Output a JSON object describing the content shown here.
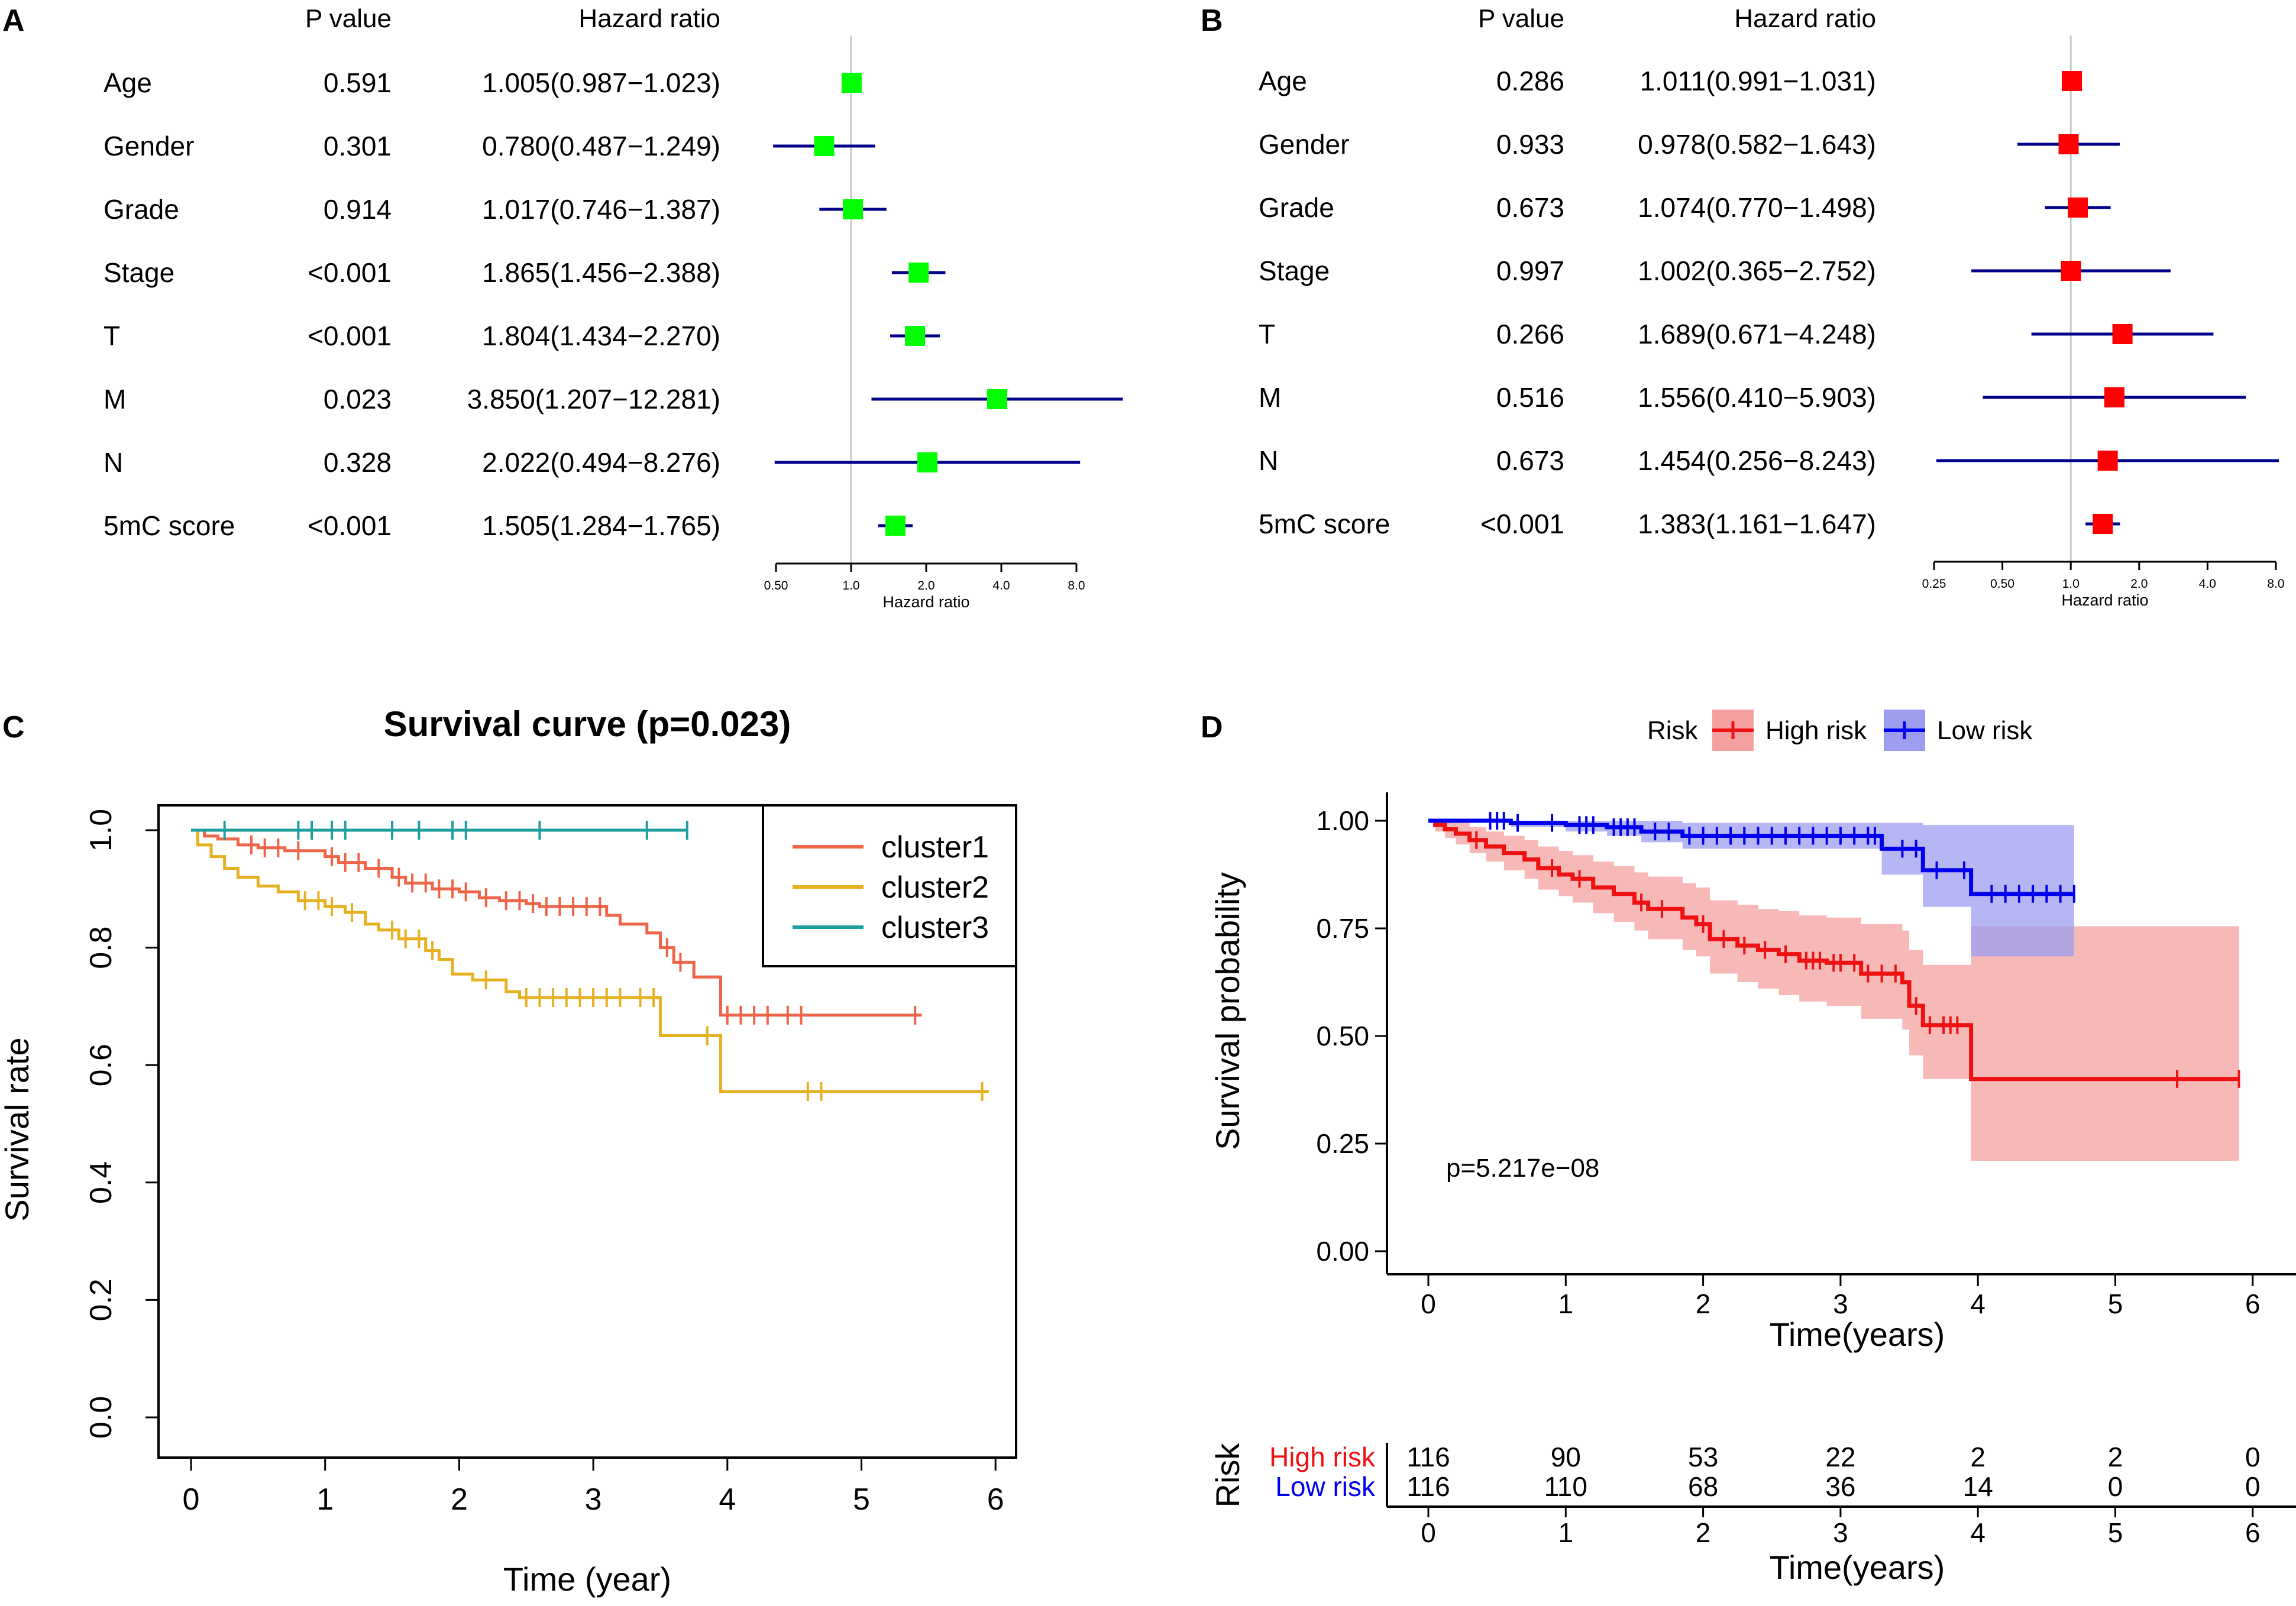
{
  "panels": {
    "a": {
      "letter": "A"
    },
    "b": {
      "letter": "B"
    },
    "c": {
      "letter": "C"
    },
    "d": {
      "letter": "D"
    }
  },
  "chart_data": [
    {
      "id": "A",
      "type": "forest",
      "col_pvalue": "P value",
      "col_hr": "Hazard ratio",
      "xlabel": "Hazard ratio",
      "x_scale": "log2",
      "x_ticks": [
        0.5,
        1.0,
        2.0,
        4.0,
        8.0
      ],
      "x_tick_labels": [
        "0.50",
        "1.0",
        "2.0",
        "4.0",
        "8.0"
      ],
      "xlim": [
        0.5,
        8.0
      ],
      "reference_line": 1.0,
      "marker_color": "#00ff00",
      "ci_color": "#00008b",
      "rows": [
        {
          "name": "Age",
          "p": "0.591",
          "hr_text": "1.005(0.987−1.023)",
          "hr": 1.005,
          "lo": 0.987,
          "hi": 1.023
        },
        {
          "name": "Gender",
          "p": "0.301",
          "hr_text": "0.780(0.487−1.249)",
          "hr": 0.78,
          "lo": 0.487,
          "hi": 1.249
        },
        {
          "name": "Grade",
          "p": "0.914",
          "hr_text": "1.017(0.746−1.387)",
          "hr": 1.017,
          "lo": 0.746,
          "hi": 1.387
        },
        {
          "name": "Stage",
          "p": "<0.001",
          "hr_text": "1.865(1.456−2.388)",
          "hr": 1.865,
          "lo": 1.456,
          "hi": 2.388
        },
        {
          "name": "T",
          "p": "<0.001",
          "hr_text": "1.804(1.434−2.270)",
          "hr": 1.804,
          "lo": 1.434,
          "hi": 2.27
        },
        {
          "name": "M",
          "p": "0.023",
          "hr_text": "3.850(1.207−12.281)",
          "hr": 3.85,
          "lo": 1.207,
          "hi": 12.281
        },
        {
          "name": "N",
          "p": "0.328",
          "hr_text": "2.022(0.494−8.276)",
          "hr": 2.022,
          "lo": 0.494,
          "hi": 8.276
        },
        {
          "name": "5mC score",
          "p": "<0.001",
          "hr_text": "1.505(1.284−1.765)",
          "hr": 1.505,
          "lo": 1.284,
          "hi": 1.765
        }
      ]
    },
    {
      "id": "B",
      "type": "forest",
      "col_pvalue": "P value",
      "col_hr": "Hazard ratio",
      "xlabel": "Hazard ratio",
      "x_scale": "log2",
      "x_ticks": [
        0.25,
        0.5,
        1.0,
        2.0,
        4.0,
        8.0
      ],
      "x_tick_labels": [
        "0.25",
        "0.50",
        "1.0",
        "2.0",
        "4.0",
        "8.0"
      ],
      "xlim": [
        0.25,
        8.0
      ],
      "reference_line": 1.0,
      "marker_color": "#ff0000",
      "ci_color": "#00008b",
      "rows": [
        {
          "name": "Age",
          "p": "0.286",
          "hr_text": "1.011(0.991−1.031)",
          "hr": 1.011,
          "lo": 0.991,
          "hi": 1.031
        },
        {
          "name": "Gender",
          "p": "0.933",
          "hr_text": "0.978(0.582−1.643)",
          "hr": 0.978,
          "lo": 0.582,
          "hi": 1.643
        },
        {
          "name": "Grade",
          "p": "0.673",
          "hr_text": "1.074(0.770−1.498)",
          "hr": 1.074,
          "lo": 0.77,
          "hi": 1.498
        },
        {
          "name": "Stage",
          "p": "0.997",
          "hr_text": "1.002(0.365−2.752)",
          "hr": 1.002,
          "lo": 0.365,
          "hi": 2.752
        },
        {
          "name": "T",
          "p": "0.266",
          "hr_text": "1.689(0.671−4.248)",
          "hr": 1.689,
          "lo": 0.671,
          "hi": 4.248
        },
        {
          "name": "M",
          "p": "0.516",
          "hr_text": "1.556(0.410−5.903)",
          "hr": 1.556,
          "lo": 0.41,
          "hi": 5.903
        },
        {
          "name": "N",
          "p": "0.673",
          "hr_text": "1.454(0.256−8.243)",
          "hr": 1.454,
          "lo": 0.256,
          "hi": 8.243
        },
        {
          "name": "5mC score",
          "p": "<0.001",
          "hr_text": "1.383(1.161−1.647)",
          "hr": 1.383,
          "lo": 1.161,
          "hi": 1.647
        }
      ]
    },
    {
      "id": "C",
      "type": "line",
      "subtype": "kaplan-meier",
      "title": "Survival curve (p=0.023)",
      "xlabel": "Time (year)",
      "ylabel": "Survival rate",
      "xlim": [
        0,
        6
      ],
      "ylim": [
        0,
        1
      ],
      "x_ticks": [
        0,
        1,
        2,
        3,
        4,
        5,
        6
      ],
      "x_tick_labels": [
        "0",
        "1",
        "2",
        "3",
        "4",
        "5",
        "6"
      ],
      "y_ticks": [
        0,
        0.2,
        0.4,
        0.6,
        0.8,
        1.0
      ],
      "y_tick_labels": [
        "0.0",
        "0.2",
        "0.4",
        "0.6",
        "0.8",
        "1.0"
      ],
      "legend_position": "top-right",
      "series": [
        {
          "name": "cluster1",
          "color": "#ef6548",
          "x": [
            0,
            0.1,
            0.2,
            0.35,
            0.5,
            0.7,
            1.0,
            1.1,
            1.3,
            1.5,
            1.6,
            1.8,
            2.0,
            2.15,
            2.3,
            2.5,
            2.6,
            3.1,
            3.2,
            3.4,
            3.5,
            3.6,
            3.75,
            3.95,
            5.45
          ],
          "y": [
            1.0,
            0.99,
            0.985,
            0.975,
            0.97,
            0.965,
            0.955,
            0.945,
            0.935,
            0.92,
            0.91,
            0.9,
            0.895,
            0.885,
            0.88,
            0.875,
            0.87,
            0.855,
            0.84,
            0.825,
            0.8,
            0.775,
            0.75,
            0.685,
            0.685
          ],
          "censor_x": [
            0.45,
            0.55,
            0.65,
            0.8,
            1.05,
            1.15,
            1.25,
            1.4,
            1.55,
            1.65,
            1.75,
            1.85,
            1.95,
            2.05,
            2.2,
            2.35,
            2.45,
            2.55,
            2.65,
            2.75,
            2.85,
            2.95,
            3.05,
            3.55,
            3.65,
            4.0,
            4.1,
            4.2,
            4.3,
            4.45,
            4.55,
            5.4
          ]
        },
        {
          "name": "cluster2",
          "color": "#e6b021",
          "x": [
            0,
            0.05,
            0.15,
            0.25,
            0.35,
            0.5,
            0.65,
            0.8,
            1.0,
            1.15,
            1.3,
            1.4,
            1.55,
            1.75,
            1.85,
            1.95,
            2.1,
            2.35,
            2.45,
            3.5,
            3.95,
            5.95
          ],
          "y": [
            1.0,
            0.975,
            0.955,
            0.935,
            0.92,
            0.905,
            0.895,
            0.88,
            0.87,
            0.86,
            0.84,
            0.83,
            0.815,
            0.795,
            0.78,
            0.755,
            0.745,
            0.725,
            0.715,
            0.65,
            0.555,
            0.555
          ],
          "censor_x": [
            0.85,
            0.95,
            1.05,
            1.2,
            1.5,
            1.6,
            1.7,
            1.8,
            2.2,
            2.5,
            2.6,
            2.7,
            2.8,
            2.9,
            3.0,
            3.1,
            3.2,
            3.35,
            3.45,
            3.85,
            4.6,
            4.7,
            5.9
          ]
        },
        {
          "name": "cluster3",
          "color": "#1f9e9e",
          "x": [
            0,
            3.7
          ],
          "y": [
            1.0,
            1.0
          ],
          "censor_x": [
            0.25,
            0.8,
            0.9,
            1.05,
            1.15,
            1.5,
            1.7,
            1.95,
            2.05,
            2.6,
            3.4,
            3.7
          ]
        }
      ]
    },
    {
      "id": "D",
      "type": "line",
      "subtype": "kaplan-meier",
      "legend_title": "Risk",
      "xlabel": "Time(years)",
      "ylabel": "Survival probability",
      "annotation": "p=5.217e−08",
      "xlim": [
        0,
        6
      ],
      "ylim": [
        0,
        1
      ],
      "x_ticks": [
        0,
        1,
        2,
        3,
        4,
        5,
        6
      ],
      "x_tick_labels": [
        "0",
        "1",
        "2",
        "3",
        "4",
        "5",
        "6"
      ],
      "y_ticks": [
        0,
        0.25,
        0.5,
        0.75,
        1.0
      ],
      "y_tick_labels": [
        "0.00",
        "0.25",
        "0.50",
        "0.75",
        "1.00"
      ],
      "legend_position": "top",
      "series": [
        {
          "name": "High risk",
          "color": "#ee1111",
          "band_color": "#f4a0a0",
          "x": [
            0,
            0.05,
            0.12,
            0.2,
            0.3,
            0.42,
            0.55,
            0.7,
            0.8,
            0.95,
            1.05,
            1.2,
            1.35,
            1.5,
            1.6,
            1.85,
            1.95,
            2.05,
            2.25,
            2.4,
            2.55,
            2.7,
            2.9,
            3.15,
            3.45,
            3.5,
            3.6,
            3.95,
            5.9
          ],
          "y": [
            1.0,
            0.99,
            0.98,
            0.97,
            0.955,
            0.94,
            0.925,
            0.91,
            0.89,
            0.875,
            0.865,
            0.845,
            0.83,
            0.81,
            0.795,
            0.775,
            0.76,
            0.725,
            0.71,
            0.7,
            0.69,
            0.675,
            0.67,
            0.645,
            0.625,
            0.57,
            0.525,
            0.4,
            0.4
          ],
          "lower": [
            1.0,
            0.975,
            0.96,
            0.945,
            0.925,
            0.905,
            0.885,
            0.865,
            0.84,
            0.825,
            0.81,
            0.785,
            0.765,
            0.745,
            0.725,
            0.7,
            0.685,
            0.645,
            0.625,
            0.61,
            0.595,
            0.58,
            0.57,
            0.54,
            0.515,
            0.455,
            0.4,
            0.21,
            0.21
          ],
          "upper": [
            1.0,
            1.0,
            1.0,
            0.995,
            0.985,
            0.975,
            0.965,
            0.955,
            0.94,
            0.93,
            0.92,
            0.905,
            0.895,
            0.88,
            0.87,
            0.855,
            0.845,
            0.815,
            0.805,
            0.795,
            0.79,
            0.78,
            0.775,
            0.76,
            0.745,
            0.7,
            0.665,
            0.755,
            0.755
          ],
          "censor_x": [
            0.35,
            0.9,
            1.1,
            1.55,
            1.7,
            2.0,
            2.15,
            2.3,
            2.45,
            2.6,
            2.75,
            2.8,
            2.85,
            2.95,
            3.0,
            3.1,
            3.2,
            3.3,
            3.4,
            3.55,
            3.65,
            3.75,
            3.8,
            3.85,
            5.45,
            5.9
          ]
        },
        {
          "name": "Low risk",
          "color": "#0000ee",
          "band_color": "#9d9df0",
          "x": [
            0,
            0.6,
            1.0,
            1.3,
            1.55,
            1.85,
            3.3,
            3.6,
            3.95,
            4.7
          ],
          "y": [
            1.0,
            0.995,
            0.99,
            0.985,
            0.975,
            0.965,
            0.935,
            0.885,
            0.83,
            0.83
          ],
          "lower": [
            1.0,
            0.985,
            0.975,
            0.965,
            0.95,
            0.935,
            0.875,
            0.8,
            0.685,
            0.685
          ],
          "upper": [
            1.0,
            1.0,
            1.0,
            1.0,
            1.0,
            0.995,
            0.995,
            0.99,
            0.99,
            0.99
          ],
          "censor_x": [
            0.45,
            0.5,
            0.55,
            0.65,
            0.9,
            1.1,
            1.15,
            1.2,
            1.35,
            1.4,
            1.45,
            1.5,
            1.65,
            1.75,
            1.9,
            2.0,
            2.1,
            2.2,
            2.3,
            2.4,
            2.5,
            2.6,
            2.7,
            2.8,
            2.9,
            3.0,
            3.1,
            3.2,
            3.25,
            3.45,
            3.55,
            3.7,
            3.9,
            4.1,
            4.2,
            4.3,
            4.4,
            4.5,
            4.6,
            4.7
          ]
        }
      ],
      "risk_table": {
        "title": "Risk",
        "xlabel": "Time(years)",
        "times": [
          0,
          1,
          2,
          3,
          4,
          5,
          6
        ],
        "time_labels": [
          "0",
          "1",
          "2",
          "3",
          "4",
          "5",
          "6"
        ],
        "rows": [
          {
            "name": "High risk",
            "color": "#ee1111",
            "counts": [
              "116",
              "90",
              "53",
              "22",
              "2",
              "2",
              "0"
            ]
          },
          {
            "name": "Low risk",
            "color": "#0000ee",
            "counts": [
              "116",
              "110",
              "68",
              "36",
              "14",
              "0",
              "0"
            ]
          }
        ]
      }
    }
  ]
}
